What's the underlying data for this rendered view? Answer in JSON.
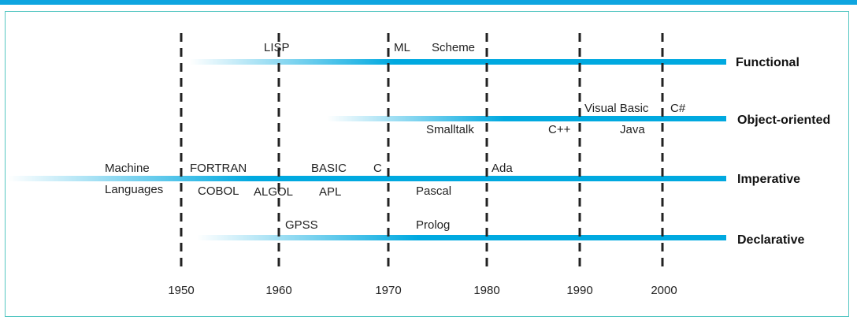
{
  "colors": {
    "accent": "#00a9e0",
    "frame": "#54c6c2",
    "divider": "#222222",
    "text": "#222222"
  },
  "years": [
    "1950",
    "1960",
    "1970",
    "1980",
    "1990",
    "2000"
  ],
  "paradigms": [
    {
      "id": "functional",
      "label": "Functional",
      "languages": [
        "LISP",
        "ML",
        "Scheme"
      ]
    },
    {
      "id": "object-oriented",
      "label": "Object-oriented",
      "languages": [
        "Visual Basic",
        "C#",
        "Smalltalk",
        "C++",
        "Java"
      ]
    },
    {
      "id": "imperative",
      "label": "Imperative",
      "languages": [
        "Machine",
        "Languages",
        "FORTRAN",
        "BASIC",
        "C",
        "Ada",
        "COBOL",
        "ALGOL",
        "APL",
        "Pascal"
      ]
    },
    {
      "id": "declarative",
      "label": "Declarative",
      "languages": [
        "GPSS",
        "Prolog"
      ]
    }
  ]
}
